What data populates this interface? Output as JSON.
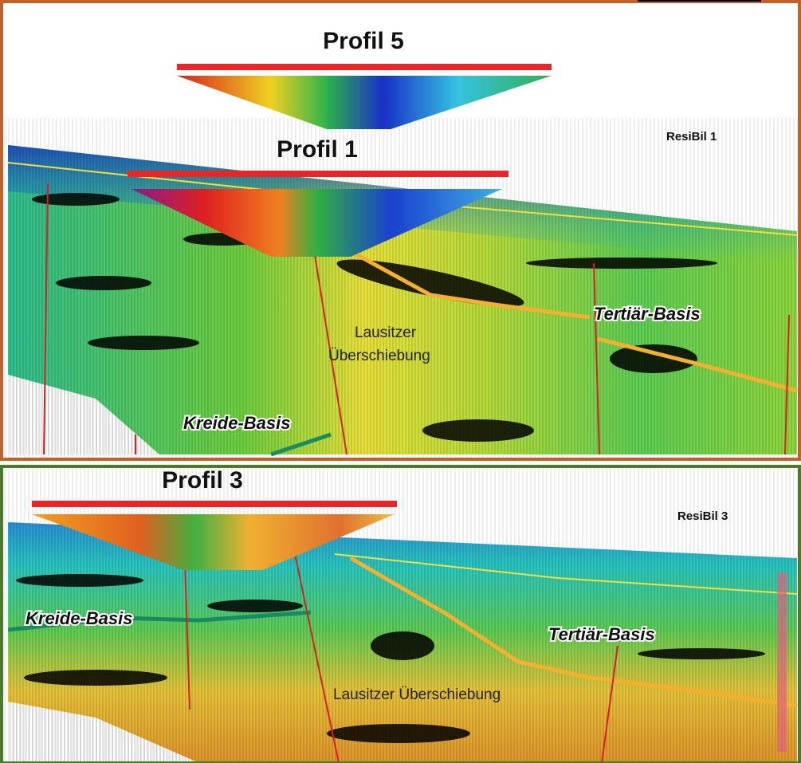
{
  "panel_top": {
    "profile_upper": "Profil 5",
    "profile_lower": "Profil 1",
    "label": "ResiBil 1",
    "thrust": [
      "Lausitzer",
      "Überschiebung"
    ],
    "tertiary": "Tertiär-Basis",
    "cretaceous": "Kreide-Basis"
  },
  "panel_bottom": {
    "profile": "Profil 3",
    "label": "ResiBil 3",
    "thrust": "Lausitzer Überschiebung",
    "tertiary": "Tertiär-Basis",
    "cretaceous": "Kreide-Basis"
  }
}
